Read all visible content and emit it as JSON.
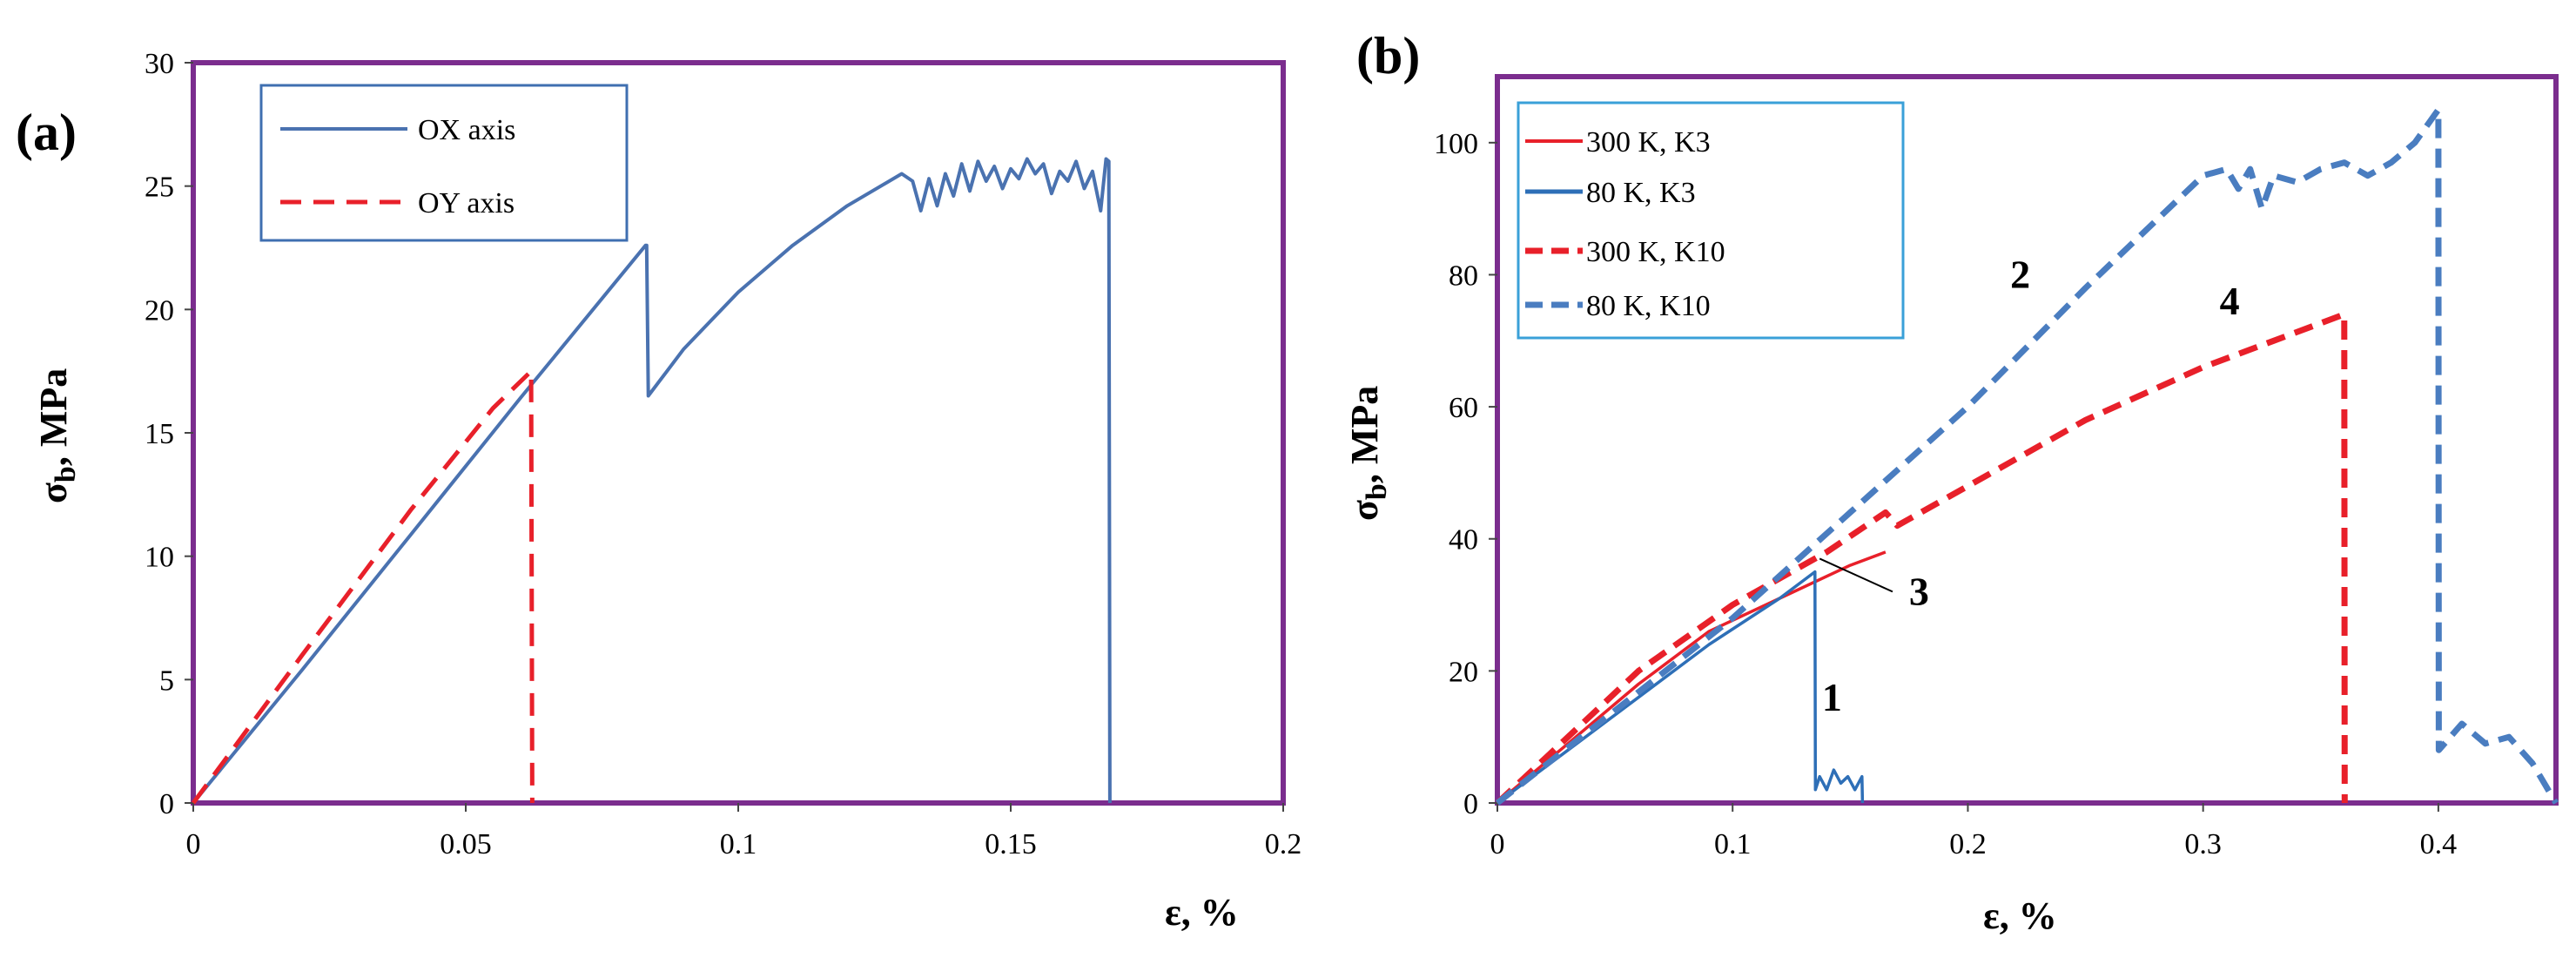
{
  "chart_data": [
    {
      "panel": "(a)",
      "type": "line",
      "xlabel": "ε, %",
      "ylabel": "σb, MPa",
      "ylabel_main": "σ",
      "ylabel_sub": "b",
      "ylabel_unit": ", MPa",
      "xlim": [
        0,
        0.2
      ],
      "ylim": [
        0,
        30
      ],
      "xticks": [
        "0",
        "0.05",
        "0.1",
        "0.15",
        "0.2"
      ],
      "yticks": [
        "0",
        "5",
        "10",
        "15",
        "20",
        "25",
        "30"
      ],
      "legend": [
        "OX axis",
        "OY axis"
      ],
      "legend_placement": "top-left",
      "grid": false,
      "series": [
        {
          "name": "OX axis",
          "color": "#4a72b0",
          "style": "solid",
          "x": [
            0,
            0.02,
            0.04,
            0.06,
            0.083,
            0.0832,
            0.0835,
            0.09,
            0.1,
            0.11,
            0.12,
            0.13,
            0.132,
            0.1335,
            0.135,
            0.1365,
            0.138,
            0.1395,
            0.141,
            0.1425,
            0.144,
            0.1455,
            0.147,
            0.1485,
            0.15,
            0.1515,
            0.153,
            0.1545,
            0.156,
            0.1575,
            0.159,
            0.1605,
            0.162,
            0.1635,
            0.165,
            0.1665,
            0.1675,
            0.168,
            0.1682
          ],
          "y": [
            0,
            5.4,
            10.9,
            16.4,
            22.6,
            22.6,
            16.5,
            18.4,
            20.7,
            22.6,
            24.2,
            25.5,
            25.2,
            24.0,
            25.3,
            24.2,
            25.5,
            24.6,
            25.9,
            24.8,
            26.0,
            25.2,
            25.8,
            24.9,
            25.7,
            25.3,
            26.1,
            25.5,
            25.9,
            24.7,
            25.6,
            25.2,
            26.0,
            24.9,
            25.6,
            24.0,
            26.1,
            26.0,
            0
          ],
          "label": ""
        },
        {
          "name": "OY axis",
          "color": "#e8202a",
          "style": "dashed",
          "x": [
            0,
            0.02,
            0.04,
            0.055,
            0.062,
            0.0622
          ],
          "y": [
            0,
            6.0,
            11.9,
            16.0,
            17.5,
            0
          ],
          "label": ""
        }
      ]
    },
    {
      "panel": "(b)",
      "type": "line",
      "xlabel": "ε, %",
      "ylabel": "σb, MPa",
      "ylabel_main": "σ",
      "ylabel_sub": "b",
      "ylabel_unit": ", MPa",
      "xlim": [
        0,
        0.45
      ],
      "ylim": [
        0,
        110
      ],
      "xticks": [
        "0",
        "0.1",
        "0.2",
        "0.3",
        "0.4"
      ],
      "yticks": [
        "0",
        "20",
        "40",
        "60",
        "80",
        "100"
      ],
      "legend": [
        "300 K, K3",
        "80 K, K3",
        "300 K, K10",
        "80 K, K10"
      ],
      "legend_placement": "top-left",
      "grid": false,
      "series": [
        {
          "name": "300 K, K3",
          "color": "#e8202a",
          "style": "solid",
          "x": [
            0,
            0.03,
            0.06,
            0.09,
            0.12,
            0.15,
            0.165
          ],
          "y": [
            0,
            9,
            18,
            26,
            31,
            36,
            38
          ],
          "label": "3"
        },
        {
          "name": "80 K, K3",
          "color": "#2e6fb7",
          "style": "solid",
          "x": [
            0,
            0.03,
            0.06,
            0.09,
            0.12,
            0.135,
            0.1352,
            0.137,
            0.14,
            0.143,
            0.146,
            0.149,
            0.152,
            0.155,
            0.1552
          ],
          "y": [
            0,
            8,
            16,
            24,
            31,
            35,
            2,
            4,
            2,
            5,
            3,
            4,
            2,
            4,
            0
          ],
          "label": "1"
        },
        {
          "name": "300 K, K10",
          "color": "#e8202a",
          "style": "dashed",
          "x": [
            0,
            0.03,
            0.06,
            0.1,
            0.14,
            0.165,
            0.17,
            0.175,
            0.2,
            0.25,
            0.3,
            0.33,
            0.36,
            0.3602
          ],
          "y": [
            0,
            10,
            20,
            30,
            38,
            44,
            42,
            43,
            48,
            58,
            66,
            70,
            74,
            0
          ],
          "label": "4"
        },
        {
          "name": "80 K, K10",
          "color": "#4a7dc0",
          "style": "dashed",
          "x": [
            0,
            0.05,
            0.1,
            0.15,
            0.2,
            0.25,
            0.3,
            0.31,
            0.315,
            0.32,
            0.325,
            0.33,
            0.34,
            0.35,
            0.36,
            0.37,
            0.38,
            0.39,
            0.4,
            0.4002,
            0.41,
            0.42,
            0.43,
            0.44,
            0.45
          ],
          "y": [
            0,
            14,
            28,
            44,
            60,
            78,
            95,
            96,
            93,
            96,
            90,
            95,
            94,
            96,
            97,
            95,
            97,
            100,
            105,
            8,
            12,
            9,
            10,
            6,
            0
          ],
          "label": "2"
        }
      ]
    }
  ]
}
